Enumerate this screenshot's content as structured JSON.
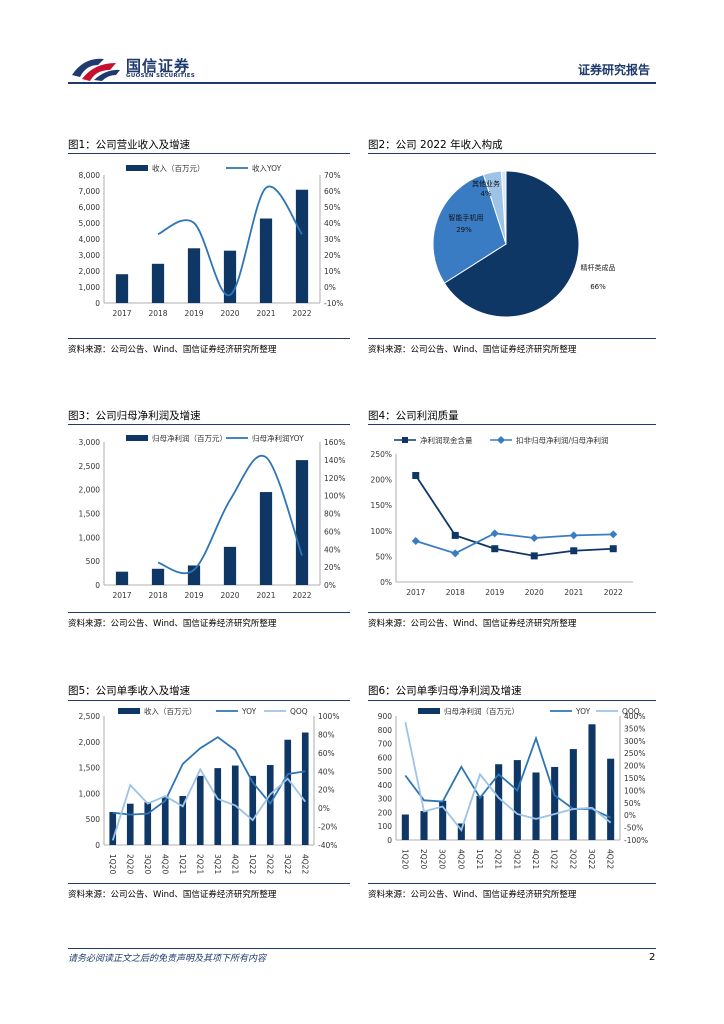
{
  "header": {
    "logo_cn": "国信证券",
    "logo_en": "GUOSEN SECURITIES",
    "report_title": "证券研究报告"
  },
  "footer": {
    "disclaimer": "请务必阅读正文之后的免责声明及其项下所有内容",
    "page_number": "2"
  },
  "colors": {
    "navy": "#0f3766",
    "blue": "#2e75b6",
    "light": "#9dc3e6",
    "mid": "#3a7cc3"
  },
  "figures": [
    {
      "title": "图1：公司营业收入及增速",
      "source": "资料来源：公司公告、Wind、国信证券经济研究所整理"
    },
    {
      "title": "图2：公司 2022 年收入构成",
      "source": "资料来源：公司公告、Wind、国信证券经济研究所整理"
    },
    {
      "title": "图3：公司归母净利润及增速",
      "source": "资料来源：公司公告、Wind、国信证券经济研究所整理"
    },
    {
      "title": "图4：公司利润质量",
      "source": "资料来源：公司公告、Wind、国信证券经济研究所整理"
    },
    {
      "title": "图5：公司单季收入及增速",
      "source": "资料来源：公司公告、Wind、国信证券经济研究所整理"
    },
    {
      "title": "图6：公司单季归母净利润及增速",
      "source": "资料来源：公司公告、Wind、国信证券经济研究所整理"
    }
  ],
  "chart_data": [
    {
      "id": "fig1",
      "type": "bar+line",
      "categories": [
        "2017",
        "2018",
        "2019",
        "2020",
        "2021",
        "2022"
      ],
      "series": [
        {
          "name": "收入（百万元）",
          "type": "bar",
          "axis": "left",
          "values": [
            1800,
            2450,
            3420,
            3270,
            5280,
            7080
          ]
        },
        {
          "name": "收入YOY",
          "type": "line",
          "axis": "right",
          "values": [
            null,
            33,
            40,
            -5,
            62,
            33
          ]
        }
      ],
      "left_axis": {
        "min": 0,
        "max": 8000,
        "step": 1000,
        "ticks": [
          "0",
          "1,000",
          "2,000",
          "3,000",
          "4,000",
          "5,000",
          "6,000",
          "7,000",
          "8,000"
        ]
      },
      "right_axis": {
        "min": -10,
        "max": 70,
        "step": 10,
        "ticks": [
          "-10%",
          "0%",
          "10%",
          "20%",
          "30%",
          "40%",
          "50%",
          "60%",
          "70%"
        ]
      }
    },
    {
      "id": "fig2",
      "type": "pie",
      "slices": [
        {
          "label": "精杆类成品",
          "value": 66,
          "text": "66%"
        },
        {
          "label": "智能手机用",
          "value": 29,
          "text": "29%"
        },
        {
          "label": "其他业务",
          "value": 4,
          "text": "4%"
        },
        {
          "label": "",
          "value": 1,
          "text": ""
        }
      ]
    },
    {
      "id": "fig3",
      "type": "bar+line",
      "categories": [
        "2017",
        "2018",
        "2019",
        "2020",
        "2021",
        "2022"
      ],
      "series": [
        {
          "name": "归母净利润（百万元）",
          "type": "bar",
          "axis": "left",
          "values": [
            280,
            340,
            410,
            800,
            1950,
            2620
          ]
        },
        {
          "name": "归母净利润YOY",
          "type": "line",
          "axis": "right",
          "values": [
            null,
            25,
            17,
            95,
            143,
            33
          ]
        }
      ],
      "left_axis": {
        "min": 0,
        "max": 3000,
        "step": 500,
        "ticks": [
          "0",
          "500",
          "1,000",
          "1,500",
          "2,000",
          "2,500",
          "3,000"
        ]
      },
      "right_axis": {
        "min": 0,
        "max": 160,
        "step": 20,
        "ticks": [
          "0%",
          "20%",
          "40%",
          "60%",
          "80%",
          "100%",
          "120%",
          "140%",
          "160%"
        ]
      }
    },
    {
      "id": "fig4",
      "type": "line",
      "categories": [
        "2017",
        "2018",
        "2019",
        "2020",
        "2021",
        "2022"
      ],
      "series": [
        {
          "name": "净利润现金含量",
          "values": [
            208,
            91,
            65,
            51,
            61,
            65
          ]
        },
        {
          "name": "扣非归母净利润/归母净利润",
          "values": [
            80,
            56,
            95,
            86,
            91,
            93
          ]
        }
      ],
      "axis": {
        "min": 0,
        "max": 250,
        "step": 50,
        "ticks": [
          "0%",
          "50%",
          "100%",
          "150%",
          "200%",
          "250%"
        ]
      }
    },
    {
      "id": "fig5",
      "type": "bar+line",
      "categories": [
        "1Q20",
        "2Q20",
        "3Q20",
        "4Q20",
        "1Q21",
        "2Q21",
        "3Q21",
        "4Q21",
        "1Q22",
        "2Q22",
        "3Q22",
        "4Q22"
      ],
      "series": [
        {
          "name": "收入（百万元）",
          "type": "bar",
          "axis": "left",
          "values": [
            640,
            800,
            830,
            940,
            950,
            1340,
            1490,
            1540,
            1340,
            1550,
            2040,
            2180
          ]
        },
        {
          "name": "YOY",
          "type": "line",
          "axis": "right",
          "values": [
            -5,
            -7,
            -6,
            8,
            48,
            65,
            77,
            63,
            28,
            5,
            37,
            40
          ]
        },
        {
          "name": "QOQ",
          "type": "line",
          "axis": "right",
          "values": [
            -35,
            25,
            5,
            13,
            2,
            42,
            10,
            3,
            -13,
            15,
            32,
            7
          ]
        }
      ],
      "left_axis": {
        "min": 0,
        "max": 2500,
        "step": 500,
        "ticks": [
          "0",
          "500",
          "1,000",
          "1,500",
          "2,000",
          "2,500"
        ]
      },
      "right_axis": {
        "min": -40,
        "max": 100,
        "step": 20,
        "ticks": [
          "-40%",
          "-20%",
          "0%",
          "20%",
          "40%",
          "60%",
          "80%",
          "100%"
        ]
      }
    },
    {
      "id": "fig6",
      "type": "bar+line",
      "categories": [
        "1Q20",
        "2Q20",
        "3Q20",
        "4Q20",
        "1Q21",
        "2Q21",
        "3Q21",
        "4Q21",
        "1Q22",
        "2Q22",
        "3Q22",
        "4Q22"
      ],
      "series": [
        {
          "name": "归母净利润（百万元）",
          "type": "bar",
          "axis": "left",
          "values": [
            185,
            210,
            285,
            120,
            320,
            550,
            580,
            490,
            530,
            660,
            840,
            590
          ]
        },
        {
          "name": "YOY",
          "type": "line",
          "axis": "right",
          "values": [
            160,
            60,
            55,
            195,
            70,
            165,
            100,
            310,
            80,
            25,
            25,
            -10
          ]
        },
        {
          "name": "QOQ",
          "type": "line",
          "axis": "right",
          "values": [
            375,
            15,
            35,
            -60,
            165,
            70,
            5,
            -15,
            5,
            25,
            30,
            -30
          ]
        }
      ],
      "left_axis": {
        "min": 0,
        "max": 900,
        "step": 100,
        "ticks": [
          "0",
          "100",
          "200",
          "300",
          "400",
          "500",
          "600",
          "700",
          "800",
          "900"
        ]
      },
      "right_axis": {
        "min": -100,
        "max": 400,
        "step": 50,
        "ticks": [
          "-100%",
          "-50%",
          "0%",
          "50%",
          "100%",
          "150%",
          "200%",
          "250%",
          "300%",
          "350%",
          "400%"
        ]
      }
    }
  ]
}
